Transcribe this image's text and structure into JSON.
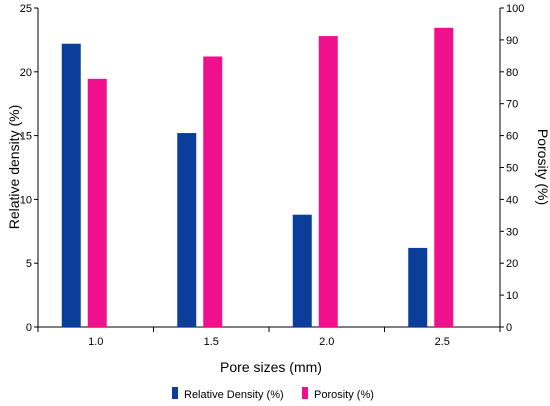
{
  "chart_data": {
    "type": "bar",
    "categories": [
      "1.0",
      "1.5",
      "2.0",
      "2.5"
    ],
    "xlabel": "Pore sizes (mm)",
    "ylabel_left": "Relative density (%)",
    "ylabel_right": "Porosity (%)",
    "ylim_left": [
      0,
      25
    ],
    "ylim_right": [
      0,
      100
    ],
    "yticks_left": [
      "0",
      "5",
      "10",
      "15",
      "20",
      "25"
    ],
    "yticks_right": [
      "0",
      "10",
      "20",
      "30",
      "40",
      "50",
      "60",
      "70",
      "80",
      "90",
      "100"
    ],
    "grid": false,
    "legend_position": "bottom",
    "series": [
      {
        "name": "Relative Density (%)",
        "axis": "left",
        "color": "#0b3e9a",
        "values": [
          22.2,
          15.2,
          8.8,
          6.2
        ]
      },
      {
        "name": "Porosity (%)",
        "axis": "right",
        "color": "#f0108e",
        "values": [
          77.8,
          84.8,
          91.2,
          93.8
        ]
      }
    ]
  }
}
